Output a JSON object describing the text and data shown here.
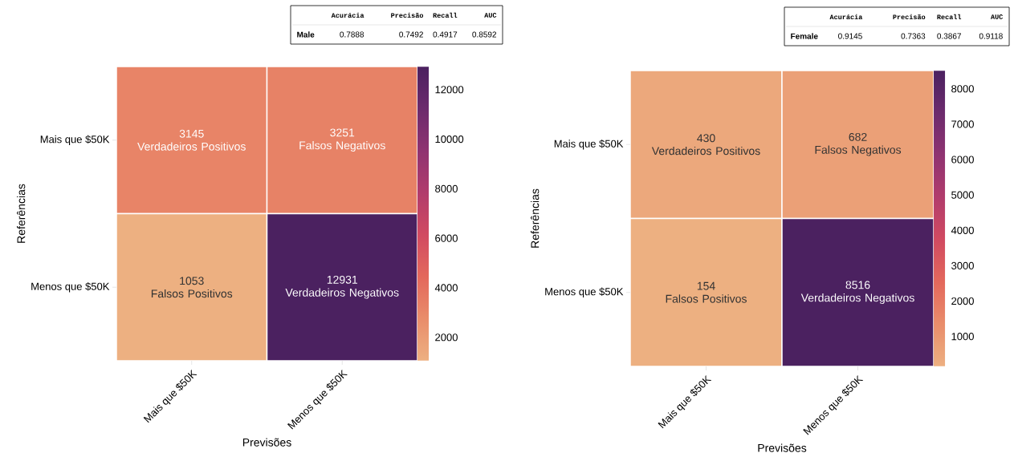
{
  "chart_data": [
    {
      "type": "heatmap",
      "categories": [
        "Mais que $50K",
        "Menos que $50K"
      ],
      "y_categories": [
        "Mais que $50K",
        "Menos que $50K"
      ],
      "cells": [
        [
          3145,
          3251
        ],
        [
          1053,
          12931
        ]
      ],
      "clim": [
        1053,
        12931
      ],
      "cticks": [
        2000,
        4000,
        6000,
        8000,
        10000,
        12000
      ],
      "cell_labels": [
        [
          "3145 Verdadeiros Positivos",
          "3251 Falsos Negativos"
        ],
        [
          "1053 Falsos Positivos",
          "12931 Verdadeiros Negativos"
        ]
      ],
      "xlabel": "Previsões",
      "ylabel": "Referências",
      "annotations": [
        "Acurácia",
        "Precisão",
        "Recall",
        "AUC",
        "Male",
        "0.7888",
        "0.7492",
        "0.4917",
        "0.8592"
      ]
    },
    {
      "type": "heatmap",
      "categories": [
        "Mais que $50K",
        "Menos que $50K"
      ],
      "y_categories": [
        "Mais que $50K",
        "Menos que $50K"
      ],
      "cells": [
        [
          430,
          682
        ],
        [
          154,
          8516
        ]
      ],
      "clim": [
        154,
        8516
      ],
      "cticks": [
        1000,
        2000,
        3000,
        4000,
        5000,
        6000,
        7000,
        8000
      ],
      "cell_labels": [
        [
          "430 Verdadeiros Positivos",
          "682 Falsos Negativos"
        ],
        [
          "154 Falsos Positivos",
          "8516 Verdadeiros Negativos"
        ]
      ],
      "xlabel": "Previsões",
      "ylabel": "Referências",
      "annotations": [
        "Acurácia",
        "Precisão",
        "Recall",
        "AUC",
        "Female",
        "0.9145",
        "0.7363",
        "0.3867",
        "0.9118"
      ]
    }
  ]
}
